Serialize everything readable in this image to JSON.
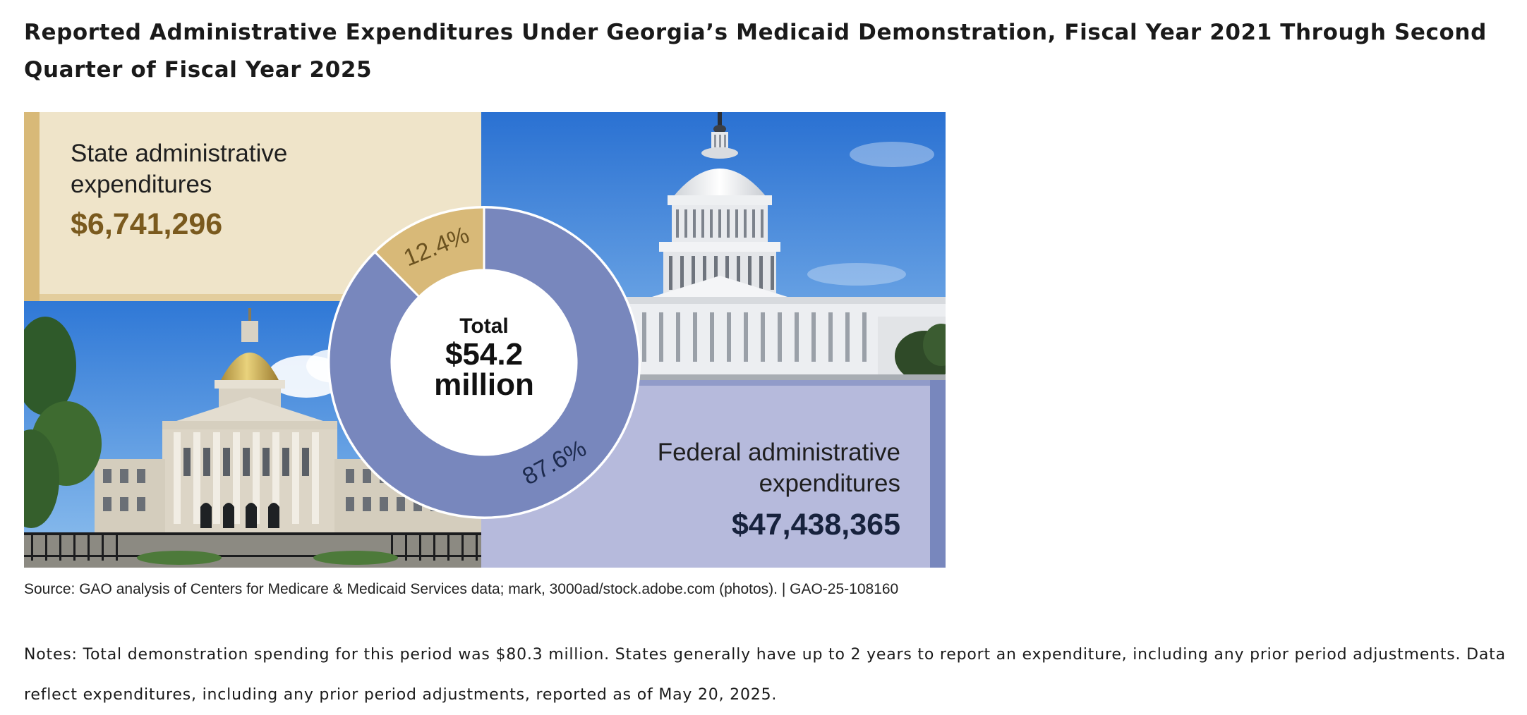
{
  "page": {
    "title": "Reported Administrative Expenditures Under Georgia’s Medicaid Demonstration, Fiscal Year 2021 Through Second Quarter of Fiscal Year 2025",
    "source": "Source: GAO analysis of Centers for Medicare & Medicaid Services data; mark, 3000ad/stock.adobe.com (photos).  |  GAO-25-108160",
    "notes": "Notes: Total demonstration spending for this period was $80.3 million. States generally have up to 2 years to report an expenditure, including any prior period adjustments. Data reflect expenditures, including any prior period adjustments, reported as of May 20, 2025."
  },
  "colors": {
    "state": "#d8b978",
    "state_panel": "#efe4c9",
    "state_value_text": "#7a5a1e",
    "federal": "#7887bd",
    "federal_panel": "#b6badc",
    "federal_value_text": "#17223d",
    "sky": "#3d88de"
  },
  "chart_data": {
    "type": "pie",
    "title": "Reported Administrative Expenditures Under Georgia’s Medicaid Demonstration, Fiscal Year 2021 Through Second Quarter of Fiscal Year 2025",
    "center_label": {
      "line1": "Total",
      "line2": "$54.2",
      "line3": "million"
    },
    "slices": [
      {
        "key": "state",
        "label_line1": "State administrative",
        "label_line2": "expenditures",
        "amount": 6741296,
        "amount_label": "$6,741,296",
        "percent": 12.4,
        "percent_label": "12.4%"
      },
      {
        "key": "federal",
        "label_line1": "Federal administrative",
        "label_line2": "expenditures",
        "amount": 47438365,
        "amount_label": "$47,438,365",
        "percent": 87.6,
        "percent_label": "87.6%"
      }
    ],
    "photos": [
      "Georgia State Capitol",
      "U.S. Capitol"
    ]
  }
}
